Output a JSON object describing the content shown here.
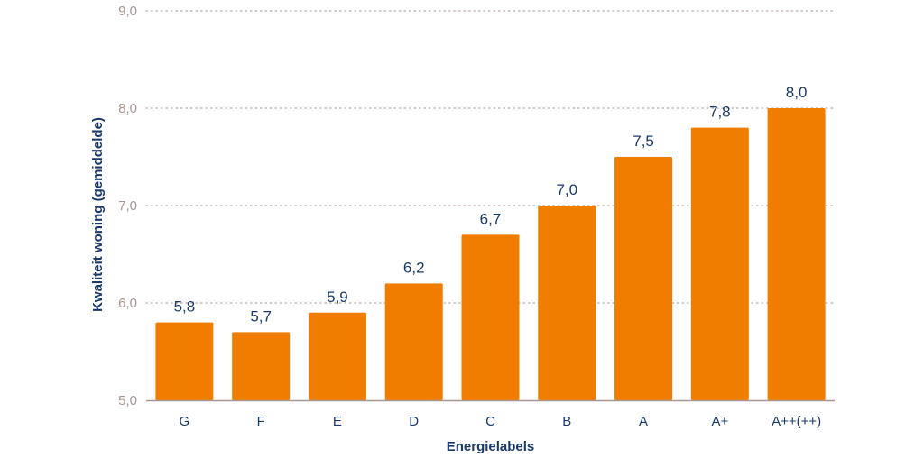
{
  "chart_data": {
    "type": "bar",
    "title": "",
    "xlabel": "Energielabels",
    "ylabel": "Kwaliteit woning (gemiddelde)",
    "categories": [
      "G",
      "F",
      "E",
      "D",
      "C",
      "B",
      "A",
      "A+",
      "A++(++)"
    ],
    "values": [
      5.8,
      5.7,
      5.9,
      6.2,
      6.7,
      7.0,
      7.5,
      7.8,
      8.0
    ],
    "value_labels": [
      "5,8",
      "5,7",
      "5,9",
      "6,2",
      "6,7",
      "7,0",
      "7,5",
      "7,8",
      "8,0"
    ],
    "ylim": [
      5.0,
      9.0
    ],
    "yticks": [
      5.0,
      6.0,
      7.0,
      8.0,
      9.0
    ],
    "ytick_labels": [
      "5,0",
      "6,0",
      "7,0",
      "8,0",
      "9,0"
    ],
    "grid": true,
    "legend": "none",
    "colors": {
      "bar": "#f07d00",
      "text": "#1a3a6b",
      "tick_y": "#a8968f",
      "grid": "#b8a8a0",
      "axis": "#a8968f"
    }
  }
}
